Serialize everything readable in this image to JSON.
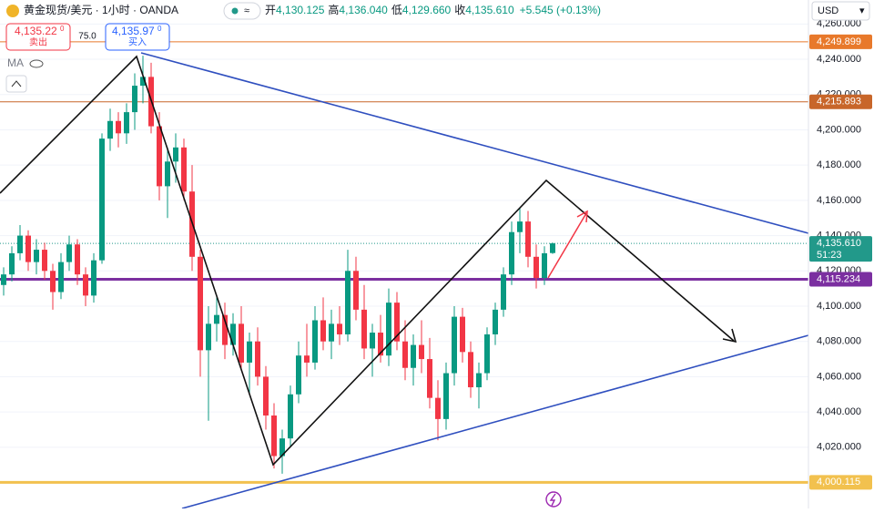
{
  "header": {
    "title": "黄金现货/美元 · 1小时 · OANDA",
    "open_label": "开",
    "open": "4,130.125",
    "high_label": "高",
    "high": "4,136.040",
    "low_label": "低",
    "low": "4,129.660",
    "close_label": "收",
    "close": "4,135.610",
    "change": "+5.545 (+0.13%)"
  },
  "trade": {
    "sell_price": "4,135.22",
    "sell_sup": "0",
    "sell_label": "卖出",
    "spread": "75.0",
    "buy_price": "4,135.97",
    "buy_sup": "0",
    "buy_label": "买入"
  },
  "indicator": "MA",
  "currency": "USD",
  "chart_data": {
    "type": "candlestick",
    "up_color": "#089981",
    "down_color": "#f23645",
    "grid": true,
    "ylim": [
      3985.3,
      4273.6
    ],
    "yticks": [
      {
        "value": 4260,
        "label": "4,260.000"
      },
      {
        "value": 4240,
        "label": "4,240.000"
      },
      {
        "value": 4220,
        "label": "4,220.000"
      },
      {
        "value": 4200,
        "label": "4,200.000"
      },
      {
        "value": 4180,
        "label": "4,180.000"
      },
      {
        "value": 4160,
        "label": "4,160.000"
      },
      {
        "value": 4140,
        "label": "4,140.000"
      },
      {
        "value": 4120,
        "label": "4,120.000"
      },
      {
        "value": 4100,
        "label": "4,100.000"
      },
      {
        "value": 4080,
        "label": "4,080.000"
      },
      {
        "value": 4060,
        "label": "4,060.000"
      },
      {
        "value": 4040,
        "label": "4,040.000"
      },
      {
        "value": 4020,
        "label": "4,020.000"
      }
    ],
    "price_lines": [
      {
        "value": 4249.899,
        "label": "4,249.899",
        "color": "#e8792b",
        "width": 1
      },
      {
        "value": 4215.893,
        "label": "4,215.893",
        "color": "#c8662a",
        "width": 1
      },
      {
        "value": 4115.234,
        "label": "4,115.234",
        "color": "#7b2fa0",
        "width": 3
      },
      {
        "value": 4000.115,
        "label": "4,000.115",
        "color": "#f2c14e",
        "width": 3
      }
    ],
    "last_price": {
      "value": 4135.61,
      "label": "4,135.610",
      "countdown": "51:23",
      "color": "#22998a"
    },
    "ohlc": [
      [
        4112,
        4122,
        4106,
        4118
      ],
      [
        4118,
        4134,
        4114,
        4130
      ],
      [
        4130,
        4146,
        4126,
        4140
      ],
      [
        4140,
        4143,
        4120,
        4125
      ],
      [
        4125,
        4138,
        4118,
        4132
      ],
      [
        4132,
        4136,
        4115,
        4120
      ],
      [
        4120,
        4124,
        4098,
        4108
      ],
      [
        4108,
        4130,
        4104,
        4125
      ],
      [
        4125,
        4140,
        4120,
        4135
      ],
      [
        4135,
        4138,
        4112,
        4118
      ],
      [
        4118,
        4122,
        4100,
        4106
      ],
      [
        4106,
        4130,
        4102,
        4126
      ],
      [
        4126,
        4198,
        4124,
        4195
      ],
      [
        4195,
        4212,
        4188,
        4205
      ],
      [
        4205,
        4210,
        4190,
        4198
      ],
      [
        4198,
        4215,
        4192,
        4210
      ],
      [
        4210,
        4232,
        4200,
        4225
      ],
      [
        4225,
        4242,
        4215,
        4230
      ],
      [
        4230,
        4238,
        4198,
        4202
      ],
      [
        4202,
        4210,
        4160,
        4168
      ],
      [
        4168,
        4190,
        4150,
        4182
      ],
      [
        4182,
        4198,
        4170,
        4190
      ],
      [
        4190,
        4195,
        4160,
        4165
      ],
      [
        4165,
        4180,
        4120,
        4128
      ],
      [
        4128,
        4132,
        4060,
        4075
      ],
      [
        4075,
        4100,
        4035,
        4090
      ],
      [
        4090,
        4105,
        4080,
        4095
      ],
      [
        4095,
        4102,
        4070,
        4078
      ],
      [
        4078,
        4096,
        4072,
        4090
      ],
      [
        4090,
        4100,
        4064,
        4068
      ],
      [
        4068,
        4085,
        4050,
        4080
      ],
      [
        4080,
        4088,
        4055,
        4060
      ],
      [
        4060,
        4066,
        4030,
        4038
      ],
      [
        4038,
        4045,
        4008,
        4015
      ],
      [
        4015,
        4030,
        4005,
        4025
      ],
      [
        4025,
        4055,
        4020,
        4050
      ],
      [
        4050,
        4080,
        4045,
        4072
      ],
      [
        4072,
        4090,
        4060,
        4068
      ],
      [
        4068,
        4100,
        4064,
        4092
      ],
      [
        4092,
        4105,
        4075,
        4080
      ],
      [
        4080,
        4098,
        4070,
        4090
      ],
      [
        4090,
        4100,
        4078,
        4084
      ],
      [
        4084,
        4132,
        4080,
        4120
      ],
      [
        4120,
        4128,
        4092,
        4098
      ],
      [
        4098,
        4112,
        4070,
        4076
      ],
      [
        4076,
        4090,
        4060,
        4085
      ],
      [
        4085,
        4095,
        4068,
        4072
      ],
      [
        4072,
        4110,
        4066,
        4102
      ],
      [
        4102,
        4108,
        4075,
        4080
      ],
      [
        4080,
        4092,
        4058,
        4065
      ],
      [
        4065,
        4084,
        4055,
        4078
      ],
      [
        4078,
        4092,
        4062,
        4070
      ],
      [
        4070,
        4082,
        4042,
        4048
      ],
      [
        4048,
        4058,
        4024,
        4036
      ],
      [
        4036,
        4068,
        4030,
        4062
      ],
      [
        4062,
        4100,
        4055,
        4094
      ],
      [
        4094,
        4099,
        4068,
        4074
      ],
      [
        4074,
        4080,
        4048,
        4054
      ],
      [
        4054,
        4068,
        4042,
        4062
      ],
      [
        4062,
        4088,
        4058,
        4084
      ],
      [
        4084,
        4102,
        4078,
        4098
      ],
      [
        4098,
        4122,
        4094,
        4118
      ],
      [
        4118,
        4148,
        4112,
        4142
      ],
      [
        4142,
        4156,
        4130,
        4148
      ],
      [
        4148,
        4154,
        4122,
        4128
      ],
      [
        4128,
        4135,
        4110,
        4116
      ],
      [
        4116,
        4134,
        4112,
        4130
      ],
      [
        4130.125,
        4136.04,
        4129.66,
        4135.61
      ]
    ]
  }
}
